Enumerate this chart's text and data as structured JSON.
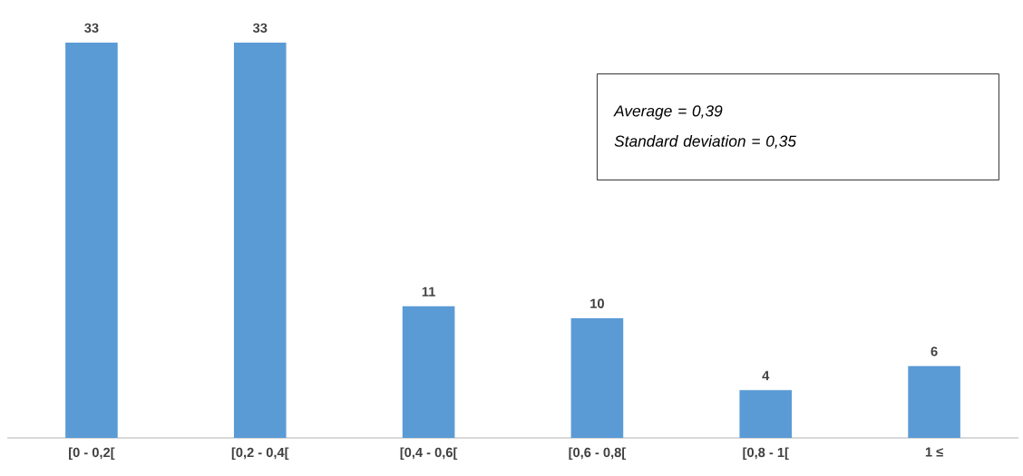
{
  "chart_data": {
    "type": "bar",
    "categories": [
      "[0 - 0,2[",
      "[0,2 - 0,4[",
      "[0,4 - 0,6[",
      "[0,6 - 0,8[",
      "[0,8 - 1[",
      "1 ≤"
    ],
    "values": [
      33,
      33,
      11,
      10,
      4,
      6
    ],
    "color": "#5b9bd5",
    "data_labels": true,
    "annotations": [
      "Average = 0,39",
      "Standard deviation = 0,35"
    ]
  }
}
